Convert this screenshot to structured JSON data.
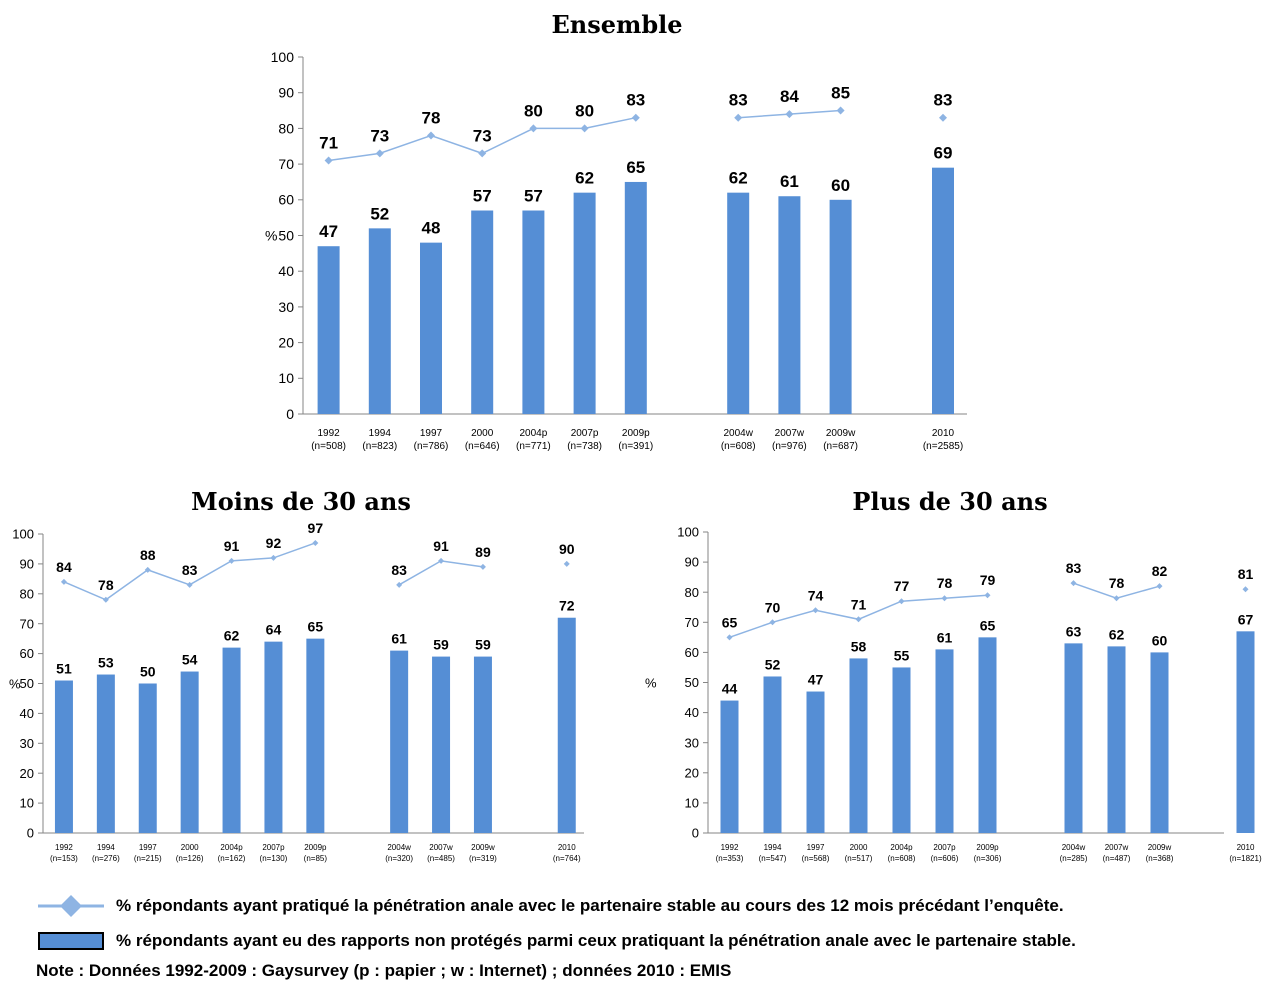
{
  "colors": {
    "bar": "#558ed5",
    "line": "#8eb4e3"
  },
  "legend": {
    "line_label": "% répondants ayant pratiqué la pénétration anale avec le partenaire stable au cours des 12 mois précédant l’enquête.",
    "bar_label": "% répondants ayant eu des rapports non protégés parmi ceux pratiquant la pénétration anale avec le partenaire stable."
  },
  "note": "Note : Données 1992-2009 : Gaysurvey (p : papier ; w : Internet) ; données 2010 : EMIS",
  "chart_data": [
    {
      "type": "bar",
      "title": "Ensemble",
      "ylabel": "%",
      "ylim": [
        0,
        100
      ],
      "yticks": [
        0,
        10,
        20,
        30,
        40,
        50,
        60,
        70,
        80,
        90,
        100
      ],
      "categories": [
        "1992",
        "1994",
        "1997",
        "2000",
        "2004p",
        "2007p",
        "2009p",
        "2004w",
        "2007w",
        "2009w",
        "2010"
      ],
      "sample_sizes": [
        "(n=508)",
        "(n=823)",
        "(n=786)",
        "(n=646)",
        "(n=771)",
        "(n=738)",
        "(n=391)",
        "(n=608)",
        "(n=976)",
        "(n=687)",
        "(n=2585)"
      ],
      "bars": [
        47,
        52,
        48,
        57,
        57,
        62,
        65,
        62,
        61,
        60,
        69
      ],
      "line": [
        71,
        73,
        78,
        73,
        80,
        80,
        83,
        83,
        84,
        85,
        83
      ],
      "line_groups": [
        [
          0,
          6
        ],
        [
          7,
          9
        ],
        [
          10,
          10
        ]
      ]
    },
    {
      "type": "bar",
      "title": "Moins de 30 ans",
      "ylabel": "%",
      "ylim": [
        0,
        100
      ],
      "yticks": [
        0,
        10,
        20,
        30,
        40,
        50,
        60,
        70,
        80,
        90,
        100
      ],
      "categories": [
        "1992",
        "1994",
        "1997",
        "2000",
        "2004p",
        "2007p",
        "2009p",
        "2004w",
        "2007w",
        "2009w",
        "2010"
      ],
      "sample_sizes": [
        "(n=153)",
        "(n=276)",
        "(n=215)",
        "(n=126)",
        "(n=162)",
        "(n=130)",
        "(n=85)",
        "(n=320)",
        "(n=485)",
        "(n=319)",
        "(n=764)"
      ],
      "bars": [
        51,
        53,
        50,
        54,
        62,
        64,
        65,
        61,
        59,
        59,
        72
      ],
      "line": [
        84,
        78,
        88,
        83,
        91,
        92,
        97,
        83,
        91,
        89,
        90
      ],
      "line_groups": [
        [
          0,
          6
        ],
        [
          7,
          9
        ],
        [
          10,
          10
        ]
      ]
    },
    {
      "type": "bar",
      "title": "Plus de 30 ans",
      "ylabel": "%",
      "ylim": [
        0,
        100
      ],
      "yticks": [
        0,
        10,
        20,
        30,
        40,
        50,
        60,
        70,
        80,
        90,
        100
      ],
      "categories": [
        "1992",
        "1994",
        "1997",
        "2000",
        "2004p",
        "2007p",
        "2009p",
        "2004w",
        "2007w",
        "2009w",
        "2010"
      ],
      "sample_sizes": [
        "(n=353)",
        "(n=547)",
        "(n=568)",
        "(n=517)",
        "(n=608)",
        "(n=606)",
        "(n=306)",
        "(n=285)",
        "(n=487)",
        "(n=368)",
        "(n=1821)"
      ],
      "bars": [
        44,
        52,
        47,
        58,
        55,
        61,
        65,
        63,
        62,
        60,
        67
      ],
      "line": [
        65,
        70,
        74,
        71,
        77,
        78,
        79,
        83,
        78,
        82,
        81
      ],
      "line_groups": [
        [
          0,
          6
        ],
        [
          7,
          9
        ],
        [
          10,
          10
        ]
      ]
    }
  ]
}
